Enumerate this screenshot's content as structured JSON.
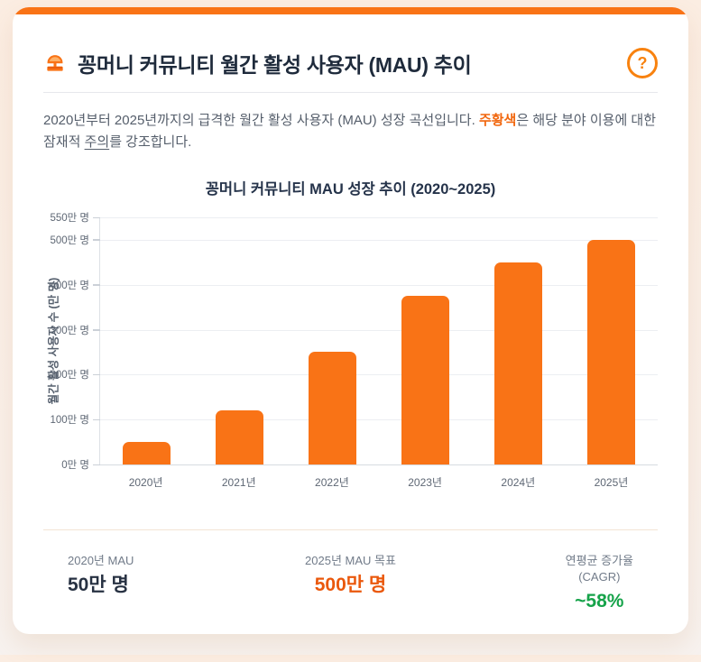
{
  "colors": {
    "accent_orange": "#F97316",
    "accent_orange_dark": "#E8590C",
    "title_navy": "#1E2A3B",
    "text_gray": "#555E6B",
    "grid_gray": "#ECEEF2",
    "page_background": "#FBEDE2",
    "stat_dark": "#273142",
    "stat_orange": "#EA580C",
    "stat_green": "#16A34A"
  },
  "header": {
    "title": "꽁머니 커뮤니티 월간 활성 사용자 (MAU) 추이",
    "title_icon": "stamp-icon",
    "help_icon": "question-circle-icon",
    "help_glyph": "?"
  },
  "description": {
    "part1": "2020년부터 2025년까지의 급격한 월간 활성 사용자 (MAU) 성장 곡선입니다. ",
    "highlight": "주황색",
    "part2": "은 해당 분야 이용에 대한 잠재적 ",
    "underlined": "주의",
    "part3": "를 강조합니다."
  },
  "chart_data": {
    "type": "bar",
    "title": "꽁머니 커뮤니티 MAU 성장 추이 (2020~2025)",
    "categories": [
      "2020년",
      "2021년",
      "2022년",
      "2023년",
      "2024년",
      "2025년"
    ],
    "values": [
      50,
      120,
      250,
      375,
      450,
      500
    ],
    "xlabel": "",
    "ylabel": "월간 활성 사용자 수 (만 명)",
    "ylim": [
      0,
      550
    ],
    "yticks": [
      0,
      100,
      200,
      300,
      400,
      500,
      550
    ],
    "ytick_suffix": "만 명",
    "bar_color": "#F97316",
    "grid": true,
    "legend_position": "none"
  },
  "stats": [
    {
      "label": "2020년 MAU",
      "sublabel": "",
      "value": "50만 명",
      "color": "#273142"
    },
    {
      "label": "2025년 MAU 목표",
      "sublabel": "",
      "value": "500만 명",
      "color": "#EA580C"
    },
    {
      "label": "연평균 증가율",
      "sublabel": "(CAGR)",
      "value": "~58%",
      "color": "#16A34A"
    }
  ]
}
